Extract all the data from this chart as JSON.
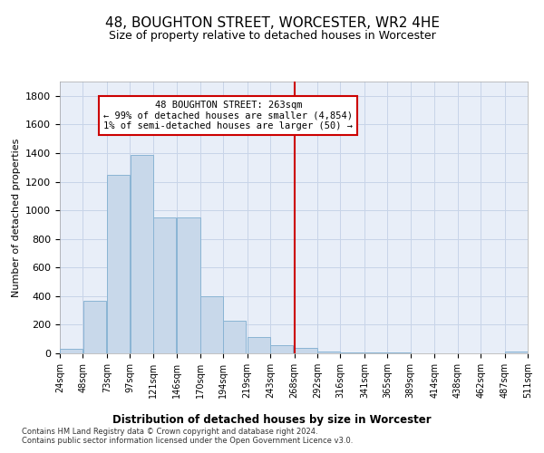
{
  "title": "48, BOUGHTON STREET, WORCESTER, WR2 4HE",
  "subtitle": "Size of property relative to detached houses in Worcester",
  "xlabel": "Distribution of detached houses by size in Worcester",
  "ylabel": "Number of detached properties",
  "footer_line1": "Contains HM Land Registry data © Crown copyright and database right 2024.",
  "footer_line2": "Contains public sector information licensed under the Open Government Licence v3.0.",
  "bar_starts": [
    24,
    48,
    73,
    97,
    121,
    146,
    170,
    194,
    219,
    243,
    268,
    292,
    316,
    341,
    365,
    389,
    414,
    438,
    462,
    487
  ],
  "bar_heights": [
    30,
    370,
    1250,
    1390,
    950,
    950,
    400,
    230,
    115,
    60,
    40,
    10,
    5,
    5,
    5,
    3,
    3,
    0,
    0,
    10
  ],
  "bin_width": 24,
  "bar_color": "#c8d8ea",
  "bar_edge_color": "#8ab4d4",
  "vline_x": 268,
  "vline_color": "#cc0000",
  "annotation_text": "48 BOUGHTON STREET: 263sqm\n← 99% of detached houses are smaller (4,854)\n1% of semi-detached houses are larger (50) →",
  "annotation_box_color": "#cc0000",
  "annotation_bg_color": "#ffffff",
  "tick_labels": [
    "24sqm",
    "48sqm",
    "73sqm",
    "97sqm",
    "121sqm",
    "146sqm",
    "170sqm",
    "194sqm",
    "219sqm",
    "243sqm",
    "268sqm",
    "292sqm",
    "316sqm",
    "341sqm",
    "365sqm",
    "389sqm",
    "414sqm",
    "438sqm",
    "462sqm",
    "487sqm",
    "511sqm"
  ],
  "ylim": [
    0,
    1900
  ],
  "yticks": [
    0,
    200,
    400,
    600,
    800,
    1000,
    1200,
    1400,
    1600,
    1800
  ],
  "grid_color": "#c8d4e8",
  "bg_color": "#e8eef8",
  "title_fontsize": 11,
  "subtitle_fontsize": 9,
  "footer_fontsize": 6
}
